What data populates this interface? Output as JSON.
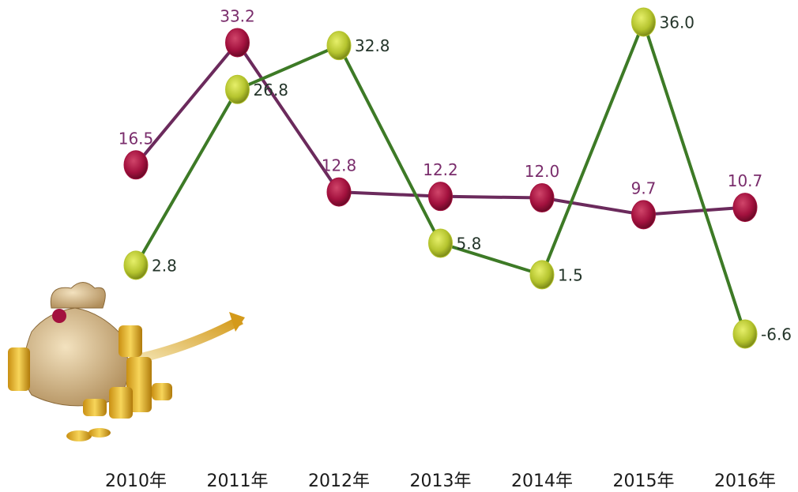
{
  "chart_data": {
    "type": "line",
    "categories": [
      "2010年",
      "2011年",
      "2012年",
      "2013年",
      "2014年",
      "2015年",
      "2016年"
    ],
    "series": [
      {
        "color": "#6b2a5c",
        "marker_color": "#a3113e",
        "label_color": "#7a2d6c",
        "values": [
          16.5,
          33.2,
          12.8,
          12.2,
          12.0,
          9.7,
          10.7
        ],
        "value_labels": [
          "16.5",
          "33.2",
          "12.8",
          "12.2",
          "12.0",
          "9.7",
          "10.7"
        ]
      },
      {
        "color": "#3d7a26",
        "marker_color": "#b5c42e",
        "label_color": "#24352a",
        "values": [
          2.8,
          26.8,
          32.8,
          5.8,
          1.5,
          36.0,
          -6.6
        ],
        "value_labels": [
          "2.8",
          "26.8",
          "32.8",
          "5.8",
          "1.5",
          "36.0",
          "-6.6"
        ]
      }
    ]
  }
}
